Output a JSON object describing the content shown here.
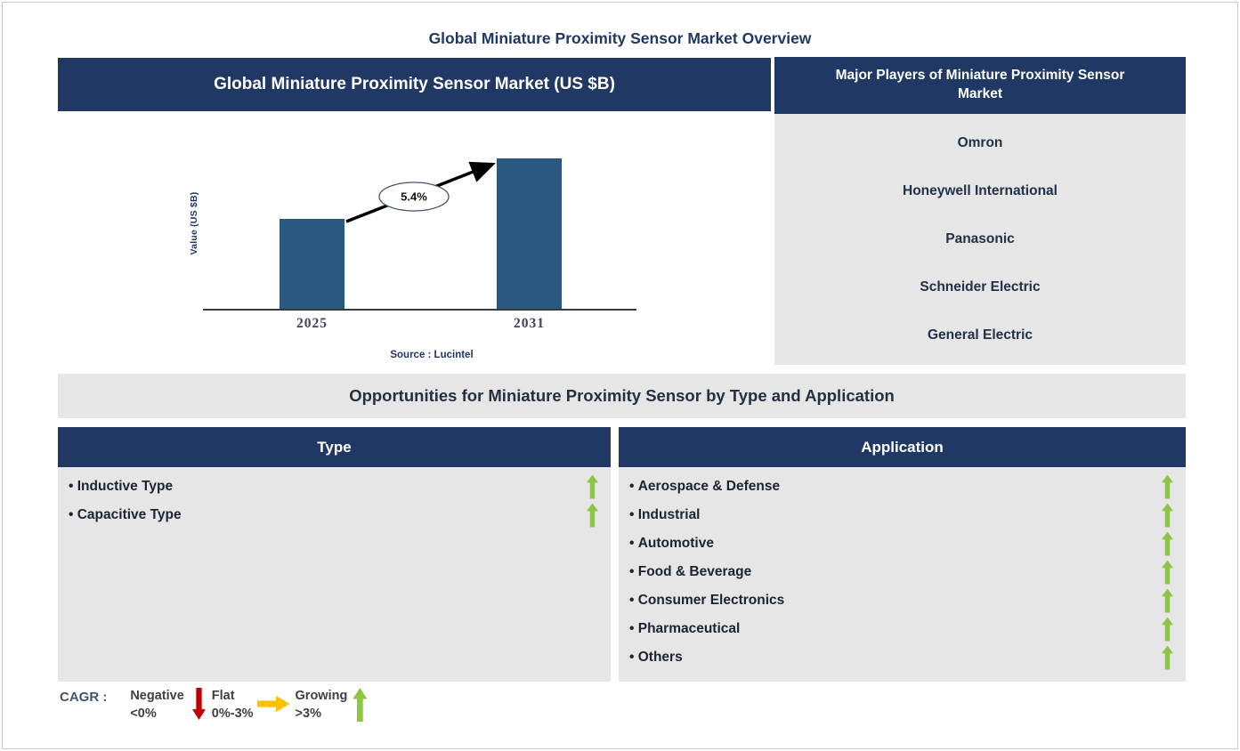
{
  "page": {
    "title": "Global Miniature Proximity Sensor Market Overview"
  },
  "chart_panel": {
    "header": "Global Miniature Proximity Sensor Market (US $B)",
    "source": "Source : Lucintel"
  },
  "chart_data": {
    "type": "bar",
    "title": "Global Miniature Proximity Sensor Market (US $B)",
    "categories": [
      "2025",
      "2031"
    ],
    "values_relative": [
      0.6,
      1.0
    ],
    "cagr_label": "5.4%",
    "cagr_pct": 5.4,
    "ylabel": "Value (US $B)",
    "xlabel": "",
    "ylim_note": "y axis has no numeric ticks; bars show relative market size",
    "bar_color": "#2A587E",
    "legend_position": "none",
    "grid": false
  },
  "major_players": {
    "header": "Major Players of Miniature Proximity Sensor Market",
    "players": [
      "Omron",
      "Honeywell International",
      "Panasonic",
      "Schneider Electric",
      "General Electric"
    ]
  },
  "opportunities": {
    "banner": "Opportunities for Miniature Proximity Sensor by Type and Application",
    "type": {
      "header": "Type",
      "items": [
        "Inductive Type",
        "Capacitive Type"
      ],
      "trend": "growing"
    },
    "application": {
      "header": "Application",
      "items": [
        "Aerospace & Defense",
        "Industrial",
        "Automotive",
        "Food & Beverage",
        "Consumer Electronics",
        "Pharmaceutical",
        "Others"
      ],
      "trend": "growing"
    }
  },
  "legend": {
    "prefix": "CAGR :",
    "entries": [
      {
        "label": "Negative",
        "range": "<0%",
        "arrow": "down",
        "color": "#C00000"
      },
      {
        "label": "Flat",
        "range": "0%-3%",
        "arrow": "right",
        "color": "#FFC000"
      },
      {
        "label": "Growing",
        "range": ">3%",
        "arrow": "up",
        "color": "#8DC63F"
      }
    ]
  },
  "colors": {
    "header_navy": "#203864",
    "panel_gray": "#E7E6E6",
    "bar_blue": "#2A587E",
    "title_navy": "#1F3864",
    "growing_green": "#8DC63F",
    "negative_red": "#C00000",
    "flat_yellow": "#FFC000"
  }
}
